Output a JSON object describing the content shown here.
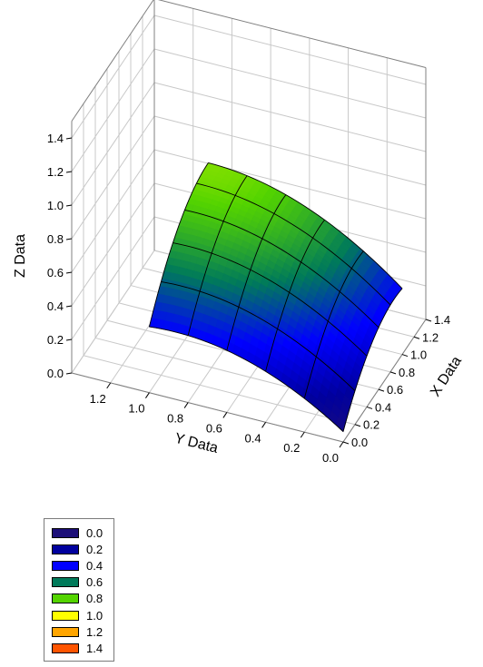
{
  "chart_data": {
    "type": "surface3d",
    "x_axis": {
      "label": "X Data",
      "range": [
        0.0,
        1.4
      ],
      "ticks": [
        "0.0",
        "0.2",
        "0.4",
        "0.6",
        "0.8",
        "1.0",
        "1.2",
        "1.4"
      ]
    },
    "y_axis": {
      "label": "Y Data",
      "range": [
        0.0,
        1.4
      ],
      "ticks": [
        "0.0",
        "0.2",
        "0.4",
        "0.6",
        "0.8",
        "1.0",
        "1.2"
      ]
    },
    "z_axis": {
      "label": "Z Data",
      "range": [
        0.0,
        1.5
      ],
      "ticks": [
        "0.0",
        "0.2",
        "0.4",
        "0.6",
        "0.8",
        "1.0",
        "1.2",
        "1.4"
      ]
    },
    "surface": {
      "x_range": [
        0.0,
        1.0
      ],
      "y_range": [
        0.0,
        1.0
      ],
      "peak_z": 0.92,
      "corner_z": 0.0,
      "mesh_lines": 5
    },
    "grid": true,
    "legend": {
      "placement": "bottom-left",
      "entries": [
        {
          "label": "0.0",
          "color": "#1c0f78"
        },
        {
          "label": "0.2",
          "color": "#00009e"
        },
        {
          "label": "0.4",
          "color": "#0000ff"
        },
        {
          "label": "0.6",
          "color": "#007a5a"
        },
        {
          "label": "0.8",
          "color": "#54d400"
        },
        {
          "label": "1.0",
          "color": "#ffff00"
        },
        {
          "label": "1.2",
          "color": "#ffa500"
        },
        {
          "label": "1.4",
          "color": "#ff5500"
        }
      ]
    }
  }
}
